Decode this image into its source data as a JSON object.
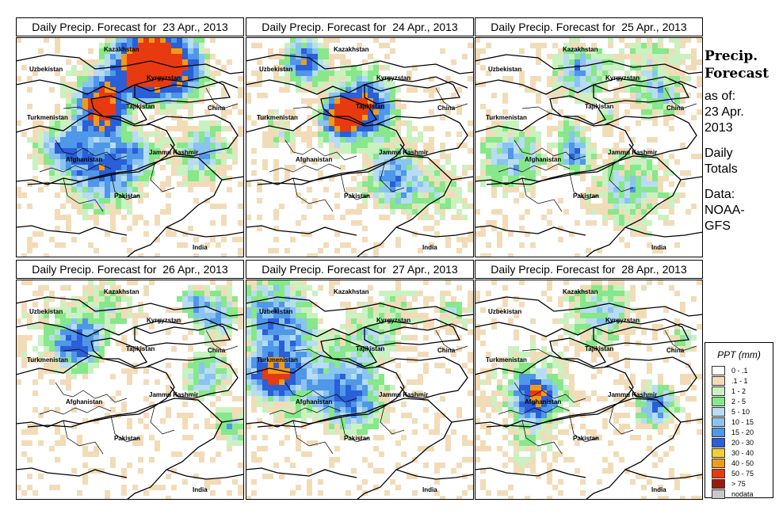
{
  "panels": [
    {
      "title": "Daily Precip. Forecast for  23 Apr., 2013",
      "seed": 23
    },
    {
      "title": "Daily Precip. Forecast for  24 Apr., 2013",
      "seed": 24
    },
    {
      "title": "Daily Precip. Forecast for  25 Apr., 2013",
      "seed": 25
    },
    {
      "title": "Daily Precip. Forecast for  26 Apr., 2013",
      "seed": 26
    },
    {
      "title": "Daily Precip. Forecast for  27 Apr., 2013",
      "seed": 27
    },
    {
      "title": "Daily Precip. Forecast for  28 Apr., 2013",
      "seed": 28
    }
  ],
  "map_labels": [
    "Kazakhstan",
    "Uzbekistan",
    "Kyrgyzstan",
    "Tajikistan",
    "Turkmenistan",
    "China",
    "Afghanistan",
    "Jammu Kashmir",
    "Pakistan",
    "India"
  ],
  "sidebar": {
    "title_line1": "Precip.",
    "title_line2": "Forecast",
    "asof_line1": "as of:",
    "asof_line2": "23 Apr.",
    "asof_line3": "2013",
    "daily_line1": "Daily",
    "daily_line2": "Totals",
    "data_line1": "Data:",
    "data_line2": "NOAA-",
    "data_line3": "GFS"
  },
  "legend": {
    "title": "PPT (mm)",
    "items": [
      {
        "label": "0 - .1",
        "color": "#ffffff"
      },
      {
        "label": ".1 - 1",
        "color": "#f2dcb8"
      },
      {
        "label": "1 - 2",
        "color": "#c9f2c0"
      },
      {
        "label": "2 - 5",
        "color": "#86e88a"
      },
      {
        "label": "5 - 10",
        "color": "#b8dcf2"
      },
      {
        "label": "10 - 15",
        "color": "#8ac4f0"
      },
      {
        "label": "15 - 20",
        "color": "#4f97e8"
      },
      {
        "label": "20 - 30",
        "color": "#2a5fd8"
      },
      {
        "label": "30 - 40",
        "color": "#f2d030"
      },
      {
        "label": "40 - 50",
        "color": "#f29a18"
      },
      {
        "label": "50 - 75",
        "color": "#e83a10"
      },
      {
        "label": "> 75",
        "color": "#9a1a10"
      },
      {
        "label": "nodata",
        "color": "#c8c8c8"
      }
    ]
  }
}
